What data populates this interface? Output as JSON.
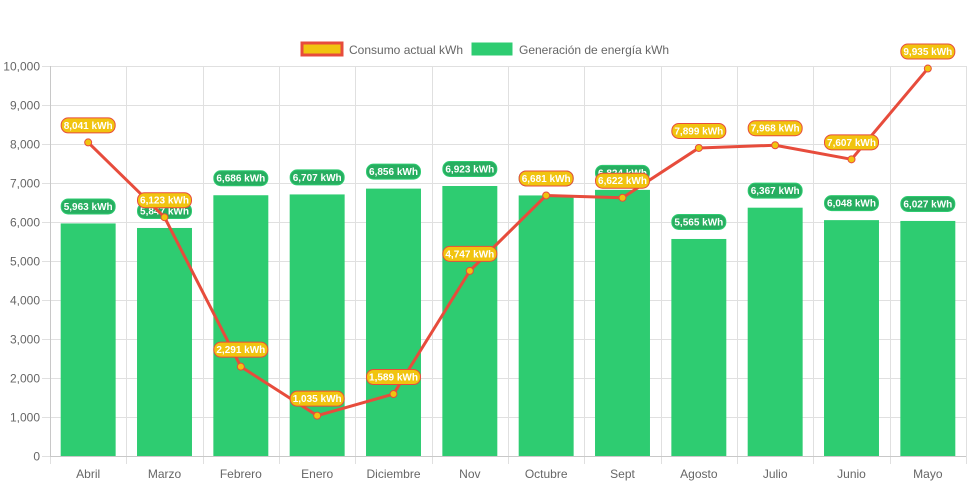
{
  "chart_data": {
    "type": "bar",
    "title": "",
    "xlabel": "",
    "ylabel": "",
    "ylim": [
      0,
      10000
    ],
    "yticks": [
      "0",
      "1,000",
      "2,000",
      "3,000",
      "4,000",
      "5,000",
      "6,000",
      "7,000",
      "8,000",
      "9,000",
      "10,000"
    ],
    "ytick_values": [
      0,
      1000,
      2000,
      3000,
      4000,
      5000,
      6000,
      7000,
      8000,
      9000,
      10000
    ],
    "grid": true,
    "legend_position": "top-center",
    "categories": [
      "Abril",
      "Marzo",
      "Febrero",
      "Enero",
      "Diciembre",
      "Nov",
      "Octubre",
      "Sept",
      "Agosto",
      "Julio",
      "Junio",
      "Mayo"
    ],
    "series": [
      {
        "name": "Consumo actual kWh",
        "type": "line",
        "color": "#e74c3c",
        "point_color": "#f1c40f",
        "label_bg": "#f1c40f",
        "label_border": "#e74c3c",
        "values": [
          8041,
          6123,
          2291,
          1035,
          1589,
          4747,
          6681,
          6622,
          7899,
          7968,
          7607,
          9935
        ],
        "labels": [
          "8,041 kWh",
          "6,123 kWh",
          "2,291 kWh",
          "1,035 kWh",
          "1,589 kWh",
          "4,747 kWh",
          "6,681 kWh",
          "6,622 kWh",
          "7,899 kWh",
          "7,968 kWh",
          "7,607 kWh",
          "9,935 kWh"
        ]
      },
      {
        "name": "Generación de energía kWh",
        "type": "bar",
        "color": "#2ecc71",
        "label_bg": "#27ae60",
        "values": [
          5963,
          5847,
          6686,
          6707,
          6856,
          6923,
          6681,
          6824,
          5565,
          6367,
          6048,
          6027
        ],
        "labels": [
          "5,963 kWh",
          "5,847 kWh",
          "6,686 kWh",
          "6,707 kWh",
          "6,856 kWh",
          "6,923 kWh",
          "6,681 kWh",
          "6,824 kWh",
          "5,565 kWh",
          "6,367 kWh",
          "6,048 kWh",
          "6,027 kWh"
        ]
      }
    ]
  }
}
